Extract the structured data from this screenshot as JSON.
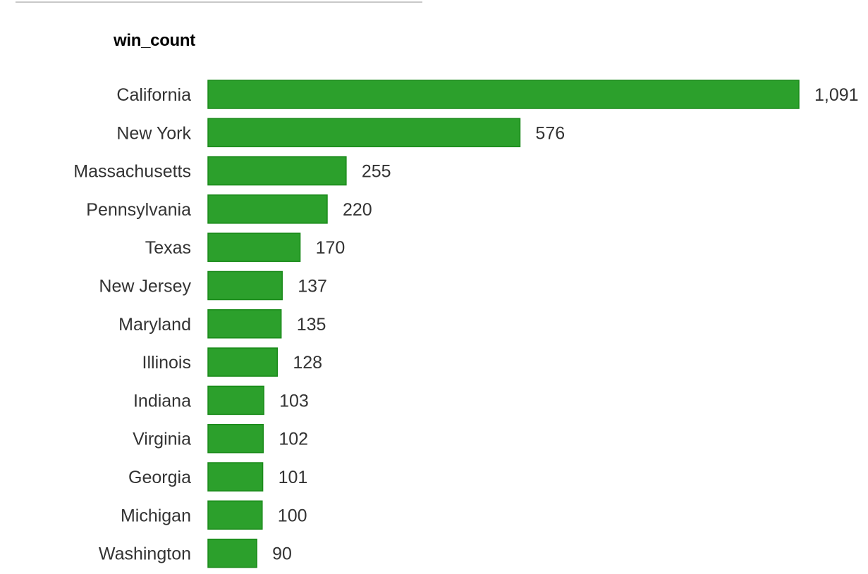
{
  "chart_data": {
    "type": "bar",
    "orientation": "horizontal",
    "title": "win_count",
    "categories": [
      "California",
      "New York",
      "Massachusetts",
      "Pennsylvania",
      "Texas",
      "New Jersey",
      "Maryland",
      "Illinois",
      "Indiana",
      "Virginia",
      "Georgia",
      "Michigan",
      "Washington"
    ],
    "values": [
      1091,
      576,
      255,
      220,
      170,
      137,
      135,
      128,
      103,
      102,
      101,
      100,
      90
    ],
    "value_labels": [
      "1,091",
      "576",
      "255",
      "220",
      "170",
      "137",
      "135",
      "128",
      "103",
      "102",
      "101",
      "100",
      "90"
    ],
    "xlim": [
      0,
      1091
    ],
    "grid": false,
    "legend": "none",
    "colors": {
      "bar_fill": "#2ca02c",
      "bar_stroke": "#1a8a1a",
      "label_text": "#333333"
    }
  }
}
